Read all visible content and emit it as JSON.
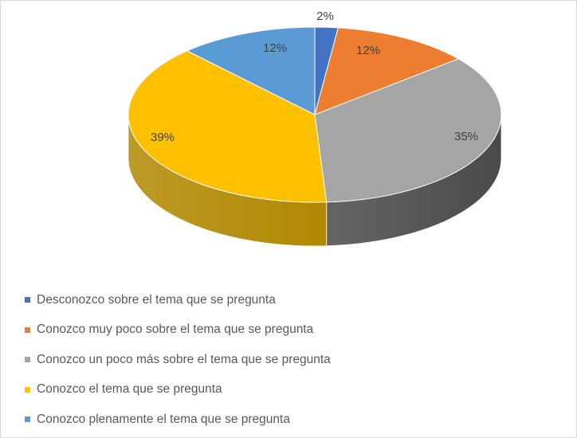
{
  "chart_data": {
    "type": "pie",
    "style": "3d",
    "categories": [
      "Desconozco sobre el tema que se pregunta",
      "Conozco muy poco sobre el tema que se pregunta",
      "Conozco un poco más sobre el tema que se pregunta",
      "Conozco el tema que se pregunta",
      "Conozco plenamente el tema que se pregunta"
    ],
    "values": [
      2,
      12,
      35,
      39,
      12
    ],
    "data_labels": [
      "2%",
      "12%",
      "35%",
      "39%",
      "12%"
    ],
    "colors": [
      "#4472c4",
      "#ed7d31",
      "#a5a5a5",
      "#ffc000",
      "#5b9bd5"
    ],
    "side_colors": [
      "#2f528f",
      "#b55d1f",
      "#4a4a4a",
      "#b08800",
      "#3e73a8"
    ],
    "legend_position": "bottom-left"
  }
}
